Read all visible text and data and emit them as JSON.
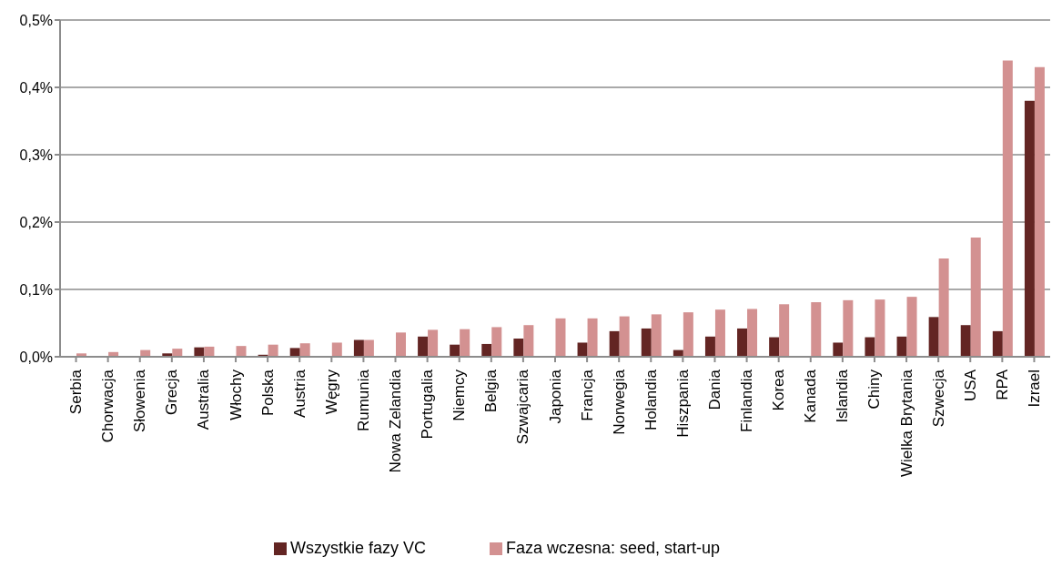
{
  "chart_data": {
    "type": "bar",
    "categories": [
      "Serbia",
      "Chorwacja",
      "Słowenia",
      "Grecja",
      "Australia",
      "Włochy",
      "Polska",
      "Austria",
      "Węgry",
      "Rumunia",
      "Nowa Zelandia",
      "Portugalia",
      "Niemcy",
      "Belgia",
      "Szwajcaria",
      "Japonia",
      "Francja",
      "Norwegia",
      "Holandia",
      "Hiszpania",
      "Dania",
      "Finlandia",
      "Korea",
      "Kanada",
      "Islandia",
      "Chiny",
      "Wielka Brytania",
      "Szwecja",
      "USA",
      "RPA",
      "Izrael"
    ],
    "series": [
      {
        "name": "Wszystkie fazy VC",
        "color": "#632523",
        "values": [
          null,
          null,
          null,
          0.005,
          0.014,
          0.001,
          0.003,
          0.013,
          null,
          0.025,
          null,
          0.03,
          0.018,
          0.019,
          0.027,
          null,
          0.021,
          0.038,
          0.042,
          0.01,
          0.03,
          0.042,
          0.029,
          null,
          0.021,
          0.029,
          0.03,
          0.059,
          0.047,
          0.038,
          0.38
        ]
      },
      {
        "name": "Faza wczesna: seed, start-up",
        "color": "#d39191",
        "values": [
          0.005,
          0.007,
          0.01,
          0.012,
          0.015,
          0.016,
          0.018,
          0.02,
          0.021,
          0.025,
          0.036,
          0.04,
          0.041,
          0.044,
          0.047,
          0.057,
          0.057,
          0.06,
          0.063,
          0.066,
          0.07,
          0.071,
          0.078,
          0.081,
          0.084,
          0.085,
          0.089,
          0.146,
          0.177,
          0.44,
          0.43
        ]
      }
    ],
    "ylim": [
      0,
      0.5
    ],
    "yticks": [
      {
        "value": 0,
        "label": "0,0%"
      },
      {
        "value": 0.1,
        "label": "0,1%"
      },
      {
        "value": 0.2,
        "label": "0,2%"
      },
      {
        "value": 0.3,
        "label": "0,3%"
      },
      {
        "value": 0.4,
        "label": "0,4%"
      },
      {
        "value": 0.5,
        "label": "0,5%"
      }
    ],
    "grid": "y",
    "legend": "bottom"
  }
}
